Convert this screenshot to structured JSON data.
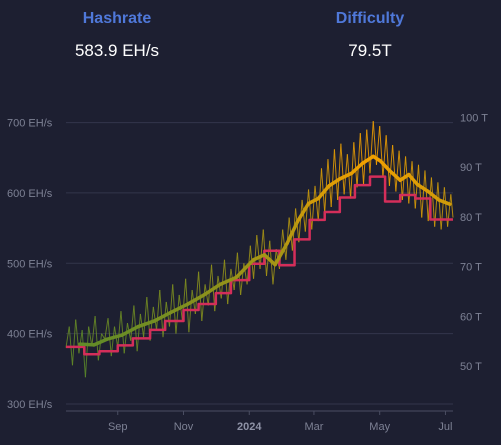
{
  "colors": {
    "background": "#1d1f31",
    "header_label": "#4f78d9",
    "grid": "#33364b",
    "axis_text": "#7d8194",
    "hashrate_low": "#5a8a2a",
    "hashrate_high": "#f2a000",
    "difficulty": "#d42e5a"
  },
  "stats": {
    "hashrate": {
      "label": "Hashrate",
      "value": "583.9 EH/s"
    },
    "difficulty": {
      "label": "Difficulty",
      "value": "79.5T"
    }
  },
  "chart_data": {
    "type": "line",
    "title": "",
    "x_ticks": [
      {
        "label": "Sep",
        "date": "2023-09-01",
        "bold": false
      },
      {
        "label": "Nov",
        "date": "2023-11-01",
        "bold": false
      },
      {
        "label": "2024",
        "date": "2024-01-01",
        "bold": true
      },
      {
        "label": "Mar",
        "date": "2024-03-01",
        "bold": false
      },
      {
        "label": "May",
        "date": "2024-05-01",
        "bold": false
      },
      {
        "label": "Jul",
        "date": "2024-07-01",
        "bold": false
      }
    ],
    "x_range": [
      "2023-07-15",
      "2024-07-08"
    ],
    "y_left": {
      "label": "",
      "unit": "EH/s",
      "range": [
        290,
        725
      ],
      "ticks": [
        "300 EH/s",
        "400 EH/s",
        "500 EH/s",
        "600 EH/s",
        "700 EH/s"
      ],
      "tick_values": [
        300,
        400,
        500,
        600,
        700
      ]
    },
    "y_right": {
      "label": "",
      "unit": "T",
      "range": [
        41.0,
        102.5
      ],
      "ticks": [
        "50 T",
        "60 T",
        "70 T",
        "80 T",
        "90 T",
        "100 T"
      ],
      "tick_values": [
        50,
        60,
        70,
        80,
        90,
        100
      ]
    },
    "grid": true,
    "series": [
      {
        "kind": "hashrate-daily",
        "axis": "left",
        "points": [
          [
            "2023-07-15",
            380
          ],
          [
            "2023-07-18",
            410
          ],
          [
            "2023-07-21",
            355
          ],
          [
            "2023-07-24",
            420
          ],
          [
            "2023-07-27",
            372
          ],
          [
            "2023-07-30",
            405
          ],
          [
            "2023-08-02",
            338
          ],
          [
            "2023-08-05",
            410
          ],
          [
            "2023-08-08",
            382
          ],
          [
            "2023-08-11",
            425
          ],
          [
            "2023-08-14",
            362
          ],
          [
            "2023-08-17",
            400
          ],
          [
            "2023-08-20",
            392
          ],
          [
            "2023-08-23",
            422
          ],
          [
            "2023-08-26",
            368
          ],
          [
            "2023-08-29",
            410
          ],
          [
            "2023-09-01",
            380
          ],
          [
            "2023-09-04",
            432
          ],
          [
            "2023-09-07",
            372
          ],
          [
            "2023-09-10",
            415
          ],
          [
            "2023-09-13",
            390
          ],
          [
            "2023-09-16",
            440
          ],
          [
            "2023-09-19",
            375
          ],
          [
            "2023-09-22",
            428
          ],
          [
            "2023-09-25",
            395
          ],
          [
            "2023-09-28",
            452
          ],
          [
            "2023-10-01",
            390
          ],
          [
            "2023-10-04",
            438
          ],
          [
            "2023-10-07",
            405
          ],
          [
            "2023-10-10",
            462
          ],
          [
            "2023-10-13",
            395
          ],
          [
            "2023-10-16",
            445
          ],
          [
            "2023-10-19",
            410
          ],
          [
            "2023-10-22",
            470
          ],
          [
            "2023-10-25",
            400
          ],
          [
            "2023-10-28",
            455
          ],
          [
            "2023-10-31",
            418
          ],
          [
            "2023-11-03",
            478
          ],
          [
            "2023-11-06",
            402
          ],
          [
            "2023-11-09",
            462
          ],
          [
            "2023-11-12",
            428
          ],
          [
            "2023-11-15",
            488
          ],
          [
            "2023-11-18",
            418
          ],
          [
            "2023-11-21",
            470
          ],
          [
            "2023-11-24",
            440
          ],
          [
            "2023-11-27",
            498
          ],
          [
            "2023-11-30",
            432
          ],
          [
            "2023-12-03",
            482
          ],
          [
            "2023-12-06",
            450
          ],
          [
            "2023-12-09",
            505
          ],
          [
            "2023-12-12",
            442
          ],
          [
            "2023-12-15",
            492
          ],
          [
            "2023-12-18",
            462
          ],
          [
            "2023-12-21",
            515
          ],
          [
            "2023-12-24",
            455
          ],
          [
            "2023-12-27",
            500
          ],
          [
            "2023-12-30",
            470
          ],
          [
            "2024-01-02",
            525
          ],
          [
            "2024-01-05",
            478
          ],
          [
            "2024-01-08",
            540
          ],
          [
            "2024-01-11",
            492
          ],
          [
            "2024-01-14",
            548
          ],
          [
            "2024-01-17",
            482
          ],
          [
            "2024-01-20",
            532
          ],
          [
            "2024-01-23",
            470
          ],
          [
            "2024-01-26",
            520
          ],
          [
            "2024-01-29",
            492
          ],
          [
            "2024-02-01",
            548
          ],
          [
            "2024-02-04",
            505
          ],
          [
            "2024-02-07",
            565
          ],
          [
            "2024-02-10",
            518
          ],
          [
            "2024-02-13",
            578
          ],
          [
            "2024-02-16",
            530
          ],
          [
            "2024-02-19",
            590
          ],
          [
            "2024-02-22",
            545
          ],
          [
            "2024-02-25",
            605
          ],
          [
            "2024-02-28",
            548
          ],
          [
            "2024-03-02",
            610
          ],
          [
            "2024-03-05",
            560
          ],
          [
            "2024-03-08",
            635
          ],
          [
            "2024-03-11",
            572
          ],
          [
            "2024-03-14",
            648
          ],
          [
            "2024-03-17",
            580
          ],
          [
            "2024-03-20",
            662
          ],
          [
            "2024-03-23",
            590
          ],
          [
            "2024-03-26",
            670
          ],
          [
            "2024-03-29",
            598
          ],
          [
            "2024-04-01",
            655
          ],
          [
            "2024-04-04",
            592
          ],
          [
            "2024-04-07",
            672
          ],
          [
            "2024-04-10",
            608
          ],
          [
            "2024-04-13",
            685
          ],
          [
            "2024-04-16",
            612
          ],
          [
            "2024-04-19",
            690
          ],
          [
            "2024-04-22",
            628
          ],
          [
            "2024-04-25",
            702
          ],
          [
            "2024-04-28",
            640
          ],
          [
            "2024-05-01",
            695
          ],
          [
            "2024-05-04",
            622
          ],
          [
            "2024-05-07",
            682
          ],
          [
            "2024-05-10",
            610
          ],
          [
            "2024-05-13",
            668
          ],
          [
            "2024-05-16",
            602
          ],
          [
            "2024-05-19",
            660
          ],
          [
            "2024-05-22",
            590
          ],
          [
            "2024-05-25",
            652
          ],
          [
            "2024-05-28",
            585
          ],
          [
            "2024-05-31",
            645
          ],
          [
            "2024-06-03",
            578
          ],
          [
            "2024-06-06",
            640
          ],
          [
            "2024-06-09",
            565
          ],
          [
            "2024-06-12",
            632
          ],
          [
            "2024-06-15",
            560
          ],
          [
            "2024-06-18",
            622
          ],
          [
            "2024-06-21",
            552
          ],
          [
            "2024-06-24",
            615
          ],
          [
            "2024-06-27",
            548
          ],
          [
            "2024-06-30",
            608
          ],
          [
            "2024-07-03",
            552
          ],
          [
            "2024-07-06",
            598
          ],
          [
            "2024-07-08",
            565
          ]
        ]
      },
      {
        "kind": "hashrate-average",
        "axis": "left",
        "points": [
          [
            "2023-07-28",
            385
          ],
          [
            "2023-08-10",
            384
          ],
          [
            "2023-08-22",
            392
          ],
          [
            "2023-09-05",
            398
          ],
          [
            "2023-09-20",
            410
          ],
          [
            "2023-10-05",
            418
          ],
          [
            "2023-10-20",
            430
          ],
          [
            "2023-11-05",
            442
          ],
          [
            "2023-11-20",
            455
          ],
          [
            "2023-12-05",
            470
          ],
          [
            "2023-12-20",
            480
          ],
          [
            "2024-01-05",
            505
          ],
          [
            "2024-01-15",
            512
          ],
          [
            "2024-01-25",
            498
          ],
          [
            "2024-02-05",
            528
          ],
          [
            "2024-02-15",
            560
          ],
          [
            "2024-02-25",
            585
          ],
          [
            "2024-03-05",
            592
          ],
          [
            "2024-03-15",
            610
          ],
          [
            "2024-03-25",
            620
          ],
          [
            "2024-04-05",
            628
          ],
          [
            "2024-04-15",
            642
          ],
          [
            "2024-04-25",
            652
          ],
          [
            "2024-05-02",
            645
          ],
          [
            "2024-05-10",
            632
          ],
          [
            "2024-05-20",
            618
          ],
          [
            "2024-05-28",
            626
          ],
          [
            "2024-06-05",
            612
          ],
          [
            "2024-06-15",
            602
          ],
          [
            "2024-06-25",
            590
          ],
          [
            "2024-07-05",
            584
          ]
        ]
      },
      {
        "kind": "difficulty",
        "axis": "right",
        "points": [
          [
            "2023-07-15",
            53.9
          ],
          [
            "2023-08-01",
            52.4
          ],
          [
            "2023-08-15",
            53.0
          ],
          [
            "2023-09-01",
            54.2
          ],
          [
            "2023-09-15",
            55.6
          ],
          [
            "2023-10-01",
            57.3
          ],
          [
            "2023-10-15",
            59.1
          ],
          [
            "2023-11-01",
            61.3
          ],
          [
            "2023-11-15",
            62.5
          ],
          [
            "2023-12-01",
            64.7
          ],
          [
            "2023-12-15",
            67.3
          ],
          [
            "2024-01-01",
            70.6
          ],
          [
            "2024-01-15",
            73.2
          ],
          [
            "2024-01-29",
            70.3
          ],
          [
            "2024-02-12",
            75.5
          ],
          [
            "2024-02-26",
            79.4
          ],
          [
            "2024-03-11",
            81.0
          ],
          [
            "2024-03-25",
            83.9
          ],
          [
            "2024-04-08",
            86.4
          ],
          [
            "2024-04-22",
            88.1
          ],
          [
            "2024-05-06",
            83.1
          ],
          [
            "2024-05-20",
            84.4
          ],
          [
            "2024-06-03",
            83.7
          ],
          [
            "2024-06-17",
            79.5
          ],
          [
            "2024-07-08",
            79.5
          ]
        ]
      }
    ]
  }
}
